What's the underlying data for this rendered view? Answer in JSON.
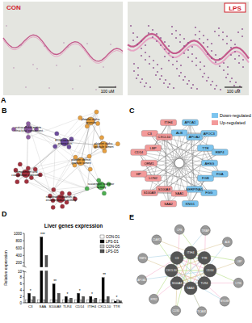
{
  "panels": [
    "A",
    "B",
    "C",
    "D",
    "E"
  ],
  "histology": {
    "images": [
      {
        "label": "CON",
        "scale_bar": "100 uM"
      },
      {
        "label": "LPS",
        "scale_bar": "100 uM"
      }
    ]
  },
  "enrichment_network": {
    "nodes": [
      {
        "label": "extracellular matrix structural constituent",
        "color": "#8e5ea2"
      },
      {
        "label": "ECM-receptor interaction",
        "color": "#6d4c9e"
      },
      {
        "label": "platelet alpha granule",
        "color": "#e8a040"
      },
      {
        "label": "platelet alpha granule lumen",
        "color": "#e8a040"
      },
      {
        "label": "platelet dense granule lumen",
        "color": "#e8a040"
      },
      {
        "label": "Complement and coagulation cascades",
        "color": "#a3303d"
      },
      {
        "label": "scavenger receptor activity",
        "color": "#4caf50"
      },
      {
        "label": "negative regulation of endopeptidase activity",
        "color": "#a3303d"
      }
    ]
  },
  "ppi_network": {
    "legend": [
      {
        "label": "Down-regulated",
        "color": "#7cc4ee"
      },
      {
        "label": "Up-regulated",
        "color": "#f39a9a"
      }
    ],
    "nodes": [
      {
        "label": "ALB",
        "regulation": "down"
      },
      {
        "label": "APOA1",
        "regulation": "down"
      },
      {
        "label": "APOA2",
        "regulation": "down"
      },
      {
        "label": "APOC3",
        "regulation": "down"
      },
      {
        "label": "TTR",
        "regulation": "down"
      },
      {
        "label": "RBP4",
        "regulation": "down"
      },
      {
        "label": "AHSG",
        "regulation": "down"
      },
      {
        "label": "FGA",
        "regulation": "down"
      },
      {
        "label": "FGB",
        "regulation": "down"
      },
      {
        "label": "FGG",
        "regulation": "down"
      },
      {
        "label": "SERPINA1",
        "regulation": "down"
      },
      {
        "label": "KNG1",
        "regulation": "down"
      },
      {
        "label": "SAA1",
        "regulation": "up"
      },
      {
        "label": "SAA2",
        "regulation": "up"
      },
      {
        "label": "S100A8",
        "regulation": "up"
      },
      {
        "label": "S100A9",
        "regulation": "up"
      },
      {
        "label": "LCN2",
        "regulation": "up"
      },
      {
        "label": "HP",
        "regulation": "up"
      },
      {
        "label": "ORM1",
        "regulation": "up"
      },
      {
        "label": "CD14",
        "regulation": "up"
      },
      {
        "label": "LBP",
        "regulation": "up"
      },
      {
        "label": "C3",
        "regulation": "up"
      },
      {
        "label": "CXCL10",
        "regulation": "up"
      },
      {
        "label": "ITIH4",
        "regulation": "up"
      }
    ]
  },
  "chart_data": {
    "type": "bar",
    "title": "Liver genes expression",
    "y_label": "Relative expression",
    "categories": [
      "C3",
      "SAA",
      "S100A8",
      "TLR4",
      "CD14",
      "ITIH4",
      "CXCL10",
      "TTR"
    ],
    "series": [
      {
        "name": "CON-D1",
        "color": "#ffffff",
        "values": [
          1,
          1,
          1,
          1,
          1,
          1,
          1,
          1
        ]
      },
      {
        "name": "LPS-D1",
        "color": "#000000",
        "values": [
          3,
          900,
          6,
          2,
          3,
          2,
          8,
          0.5
        ]
      },
      {
        "name": "CON-D5",
        "color": "#bbbbbb",
        "values": [
          1,
          1,
          1,
          1,
          1,
          1,
          1,
          1
        ]
      },
      {
        "name": "LPS-D5",
        "color": "#555555",
        "values": [
          2,
          400,
          3,
          1.5,
          2,
          1.5,
          2,
          0.6
        ]
      }
    ],
    "ylim": [
      0,
      1000
    ],
    "yticks": [
      0,
      2,
      4,
      6,
      8,
      10,
      200,
      400,
      600,
      800,
      1000
    ],
    "y_break": [
      10,
      100
    ],
    "legend": "top-right",
    "grid": false,
    "annotations": [
      {
        "category": "C3",
        "text": "*"
      },
      {
        "category": "SAA",
        "text": "***"
      },
      {
        "category": "S100A8",
        "text": "**"
      },
      {
        "category": "TLR4",
        "text": "*"
      },
      {
        "category": "CD14",
        "text": "*"
      },
      {
        "category": "ITIH4",
        "text": "*"
      },
      {
        "category": "CXCL10",
        "text": "**"
      },
      {
        "category": "TTR",
        "text": "*"
      }
    ]
  },
  "gene_network": {
    "nodes": [
      {
        "label": "CD14",
        "core": true
      },
      {
        "label": "TLR4",
        "core": true
      },
      {
        "label": "SAA3",
        "core": true
      },
      {
        "label": "S100A8",
        "core": true
      },
      {
        "label": "CXCL10",
        "core": true
      },
      {
        "label": "C3",
        "core": true
      },
      {
        "label": "ITIH4",
        "core": true
      },
      {
        "label": "TTR",
        "core": true
      },
      {
        "label": "LY96",
        "core": false
      },
      {
        "label": "MYD88",
        "core": false
      },
      {
        "label": "TICAM1",
        "core": false
      },
      {
        "label": "CD36",
        "core": false
      },
      {
        "label": "FPR2",
        "core": false
      },
      {
        "label": "APOA1",
        "core": false
      },
      {
        "label": "RBP4",
        "core": false
      },
      {
        "label": "C5AR1",
        "core": false
      },
      {
        "label": "CFB",
        "core": false
      },
      {
        "label": "TIRAP",
        "core": false
      },
      {
        "label": "ALB",
        "core": false
      },
      {
        "label": "LBP",
        "core": false
      }
    ]
  }
}
